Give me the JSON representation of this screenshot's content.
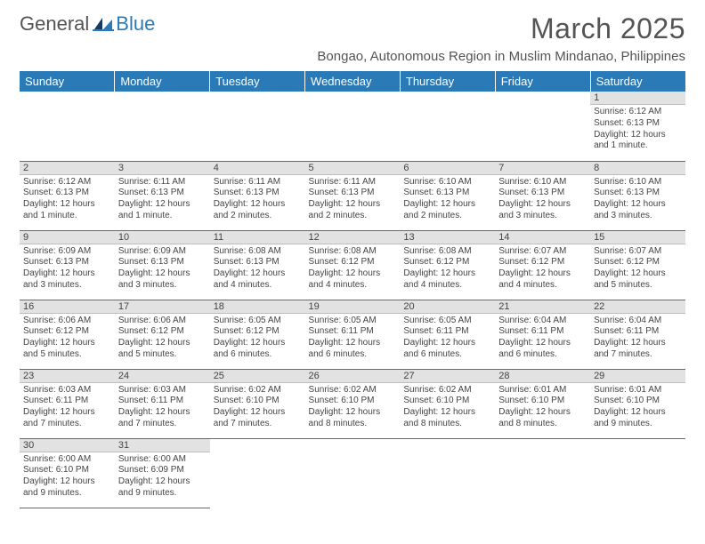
{
  "brand": {
    "general": "General",
    "blue": "Blue"
  },
  "title": "March 2025",
  "location": "Bongao, Autonomous Region in Muslim Mindanao, Philippines",
  "colors": {
    "accent": "#2a7ab8",
    "header_text": "#545454",
    "grid_bg": "#e2e2e2"
  },
  "weekdays": [
    "Sunday",
    "Monday",
    "Tuesday",
    "Wednesday",
    "Thursday",
    "Friday",
    "Saturday"
  ],
  "weeks": [
    [
      null,
      null,
      null,
      null,
      null,
      null,
      {
        "n": "1",
        "sr": "Sunrise: 6:12 AM",
        "ss": "Sunset: 6:13 PM",
        "dl": "Daylight: 12 hours and 1 minute."
      }
    ],
    [
      {
        "n": "2",
        "sr": "Sunrise: 6:12 AM",
        "ss": "Sunset: 6:13 PM",
        "dl": "Daylight: 12 hours and 1 minute."
      },
      {
        "n": "3",
        "sr": "Sunrise: 6:11 AM",
        "ss": "Sunset: 6:13 PM",
        "dl": "Daylight: 12 hours and 1 minute."
      },
      {
        "n": "4",
        "sr": "Sunrise: 6:11 AM",
        "ss": "Sunset: 6:13 PM",
        "dl": "Daylight: 12 hours and 2 minutes."
      },
      {
        "n": "5",
        "sr": "Sunrise: 6:11 AM",
        "ss": "Sunset: 6:13 PM",
        "dl": "Daylight: 12 hours and 2 minutes."
      },
      {
        "n": "6",
        "sr": "Sunrise: 6:10 AM",
        "ss": "Sunset: 6:13 PM",
        "dl": "Daylight: 12 hours and 2 minutes."
      },
      {
        "n": "7",
        "sr": "Sunrise: 6:10 AM",
        "ss": "Sunset: 6:13 PM",
        "dl": "Daylight: 12 hours and 3 minutes."
      },
      {
        "n": "8",
        "sr": "Sunrise: 6:10 AM",
        "ss": "Sunset: 6:13 PM",
        "dl": "Daylight: 12 hours and 3 minutes."
      }
    ],
    [
      {
        "n": "9",
        "sr": "Sunrise: 6:09 AM",
        "ss": "Sunset: 6:13 PM",
        "dl": "Daylight: 12 hours and 3 minutes."
      },
      {
        "n": "10",
        "sr": "Sunrise: 6:09 AM",
        "ss": "Sunset: 6:13 PM",
        "dl": "Daylight: 12 hours and 3 minutes."
      },
      {
        "n": "11",
        "sr": "Sunrise: 6:08 AM",
        "ss": "Sunset: 6:13 PM",
        "dl": "Daylight: 12 hours and 4 minutes."
      },
      {
        "n": "12",
        "sr": "Sunrise: 6:08 AM",
        "ss": "Sunset: 6:12 PM",
        "dl": "Daylight: 12 hours and 4 minutes."
      },
      {
        "n": "13",
        "sr": "Sunrise: 6:08 AM",
        "ss": "Sunset: 6:12 PM",
        "dl": "Daylight: 12 hours and 4 minutes."
      },
      {
        "n": "14",
        "sr": "Sunrise: 6:07 AM",
        "ss": "Sunset: 6:12 PM",
        "dl": "Daylight: 12 hours and 4 minutes."
      },
      {
        "n": "15",
        "sr": "Sunrise: 6:07 AM",
        "ss": "Sunset: 6:12 PM",
        "dl": "Daylight: 12 hours and 5 minutes."
      }
    ],
    [
      {
        "n": "16",
        "sr": "Sunrise: 6:06 AM",
        "ss": "Sunset: 6:12 PM",
        "dl": "Daylight: 12 hours and 5 minutes."
      },
      {
        "n": "17",
        "sr": "Sunrise: 6:06 AM",
        "ss": "Sunset: 6:12 PM",
        "dl": "Daylight: 12 hours and 5 minutes."
      },
      {
        "n": "18",
        "sr": "Sunrise: 6:05 AM",
        "ss": "Sunset: 6:12 PM",
        "dl": "Daylight: 12 hours and 6 minutes."
      },
      {
        "n": "19",
        "sr": "Sunrise: 6:05 AM",
        "ss": "Sunset: 6:11 PM",
        "dl": "Daylight: 12 hours and 6 minutes."
      },
      {
        "n": "20",
        "sr": "Sunrise: 6:05 AM",
        "ss": "Sunset: 6:11 PM",
        "dl": "Daylight: 12 hours and 6 minutes."
      },
      {
        "n": "21",
        "sr": "Sunrise: 6:04 AM",
        "ss": "Sunset: 6:11 PM",
        "dl": "Daylight: 12 hours and 6 minutes."
      },
      {
        "n": "22",
        "sr": "Sunrise: 6:04 AM",
        "ss": "Sunset: 6:11 PM",
        "dl": "Daylight: 12 hours and 7 minutes."
      }
    ],
    [
      {
        "n": "23",
        "sr": "Sunrise: 6:03 AM",
        "ss": "Sunset: 6:11 PM",
        "dl": "Daylight: 12 hours and 7 minutes."
      },
      {
        "n": "24",
        "sr": "Sunrise: 6:03 AM",
        "ss": "Sunset: 6:11 PM",
        "dl": "Daylight: 12 hours and 7 minutes."
      },
      {
        "n": "25",
        "sr": "Sunrise: 6:02 AM",
        "ss": "Sunset: 6:10 PM",
        "dl": "Daylight: 12 hours and 7 minutes."
      },
      {
        "n": "26",
        "sr": "Sunrise: 6:02 AM",
        "ss": "Sunset: 6:10 PM",
        "dl": "Daylight: 12 hours and 8 minutes."
      },
      {
        "n": "27",
        "sr": "Sunrise: 6:02 AM",
        "ss": "Sunset: 6:10 PM",
        "dl": "Daylight: 12 hours and 8 minutes."
      },
      {
        "n": "28",
        "sr": "Sunrise: 6:01 AM",
        "ss": "Sunset: 6:10 PM",
        "dl": "Daylight: 12 hours and 8 minutes."
      },
      {
        "n": "29",
        "sr": "Sunrise: 6:01 AM",
        "ss": "Sunset: 6:10 PM",
        "dl": "Daylight: 12 hours and 9 minutes."
      }
    ],
    [
      {
        "n": "30",
        "sr": "Sunrise: 6:00 AM",
        "ss": "Sunset: 6:10 PM",
        "dl": "Daylight: 12 hours and 9 minutes."
      },
      {
        "n": "31",
        "sr": "Sunrise: 6:00 AM",
        "ss": "Sunset: 6:09 PM",
        "dl": "Daylight: 12 hours and 9 minutes."
      },
      null,
      null,
      null,
      null,
      null
    ]
  ]
}
